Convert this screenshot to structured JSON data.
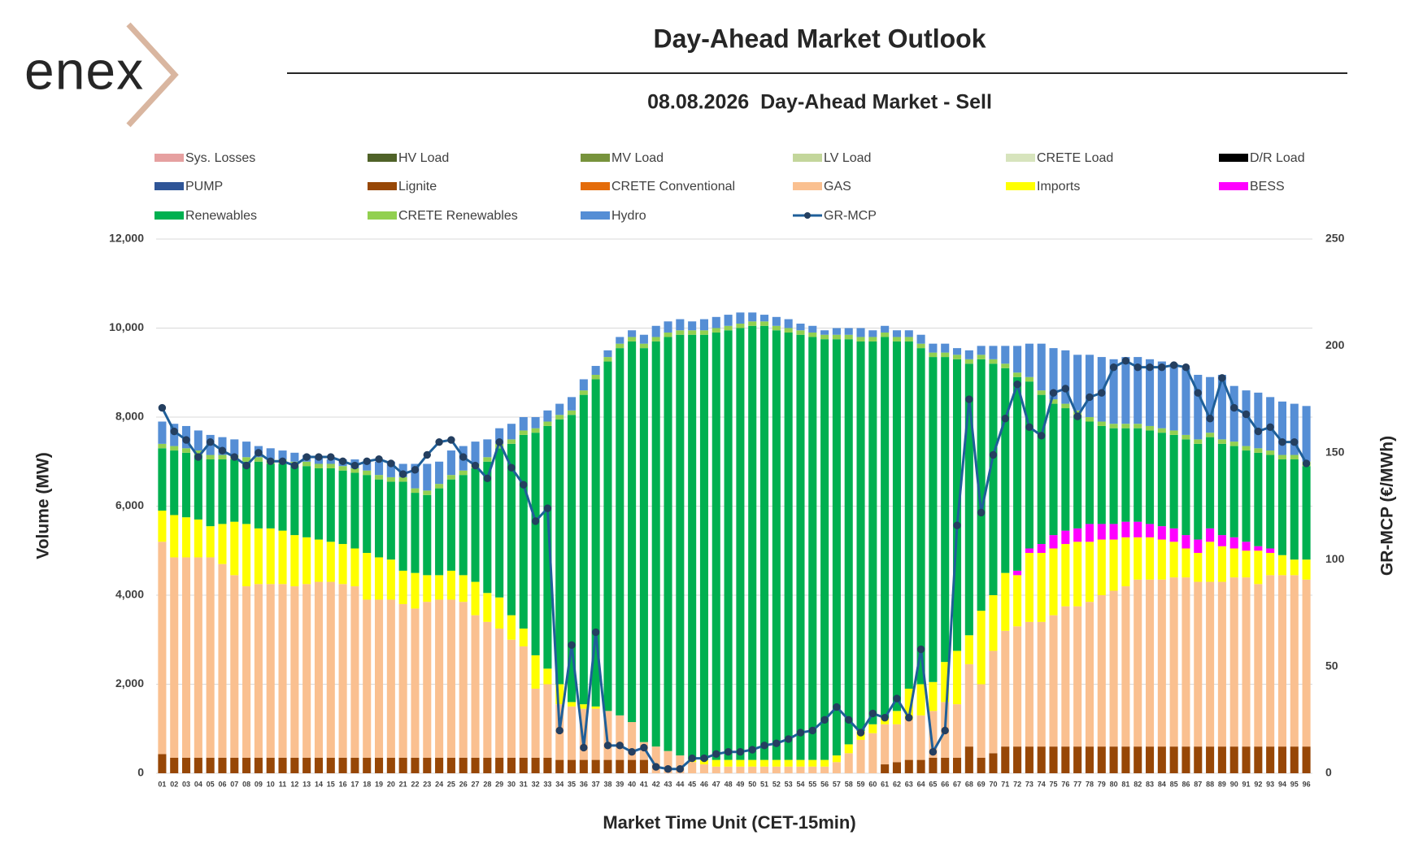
{
  "logo": "enex",
  "chart_data": {
    "type": "bar",
    "title": "Day-Ahead Market Outlook",
    "subtitle": "08.08.2026  Day-Ahead Market - Sell",
    "x_label": "Market Time Unit (CET-15min)",
    "y_label": "Volume (MW)",
    "y2_label": "GR-MCP (€/MWh)",
    "stacked": true,
    "grid": true,
    "legend": "top",
    "categories": [
      "01",
      "02",
      "03",
      "04",
      "05",
      "06",
      "07",
      "08",
      "09",
      "10",
      "11",
      "12",
      "13",
      "14",
      "15",
      "16",
      "17",
      "18",
      "19",
      "20",
      "21",
      "22",
      "23",
      "24",
      "25",
      "26",
      "27",
      "28",
      "29",
      "30",
      "31",
      "32",
      "33",
      "34",
      "35",
      "36",
      "37",
      "38",
      "39",
      "40",
      "41",
      "42",
      "43",
      "44",
      "45",
      "46",
      "47",
      "48",
      "49",
      "50",
      "51",
      "52",
      "53",
      "54",
      "55",
      "56",
      "57",
      "58",
      "59",
      "60",
      "61",
      "62",
      "63",
      "64",
      "65",
      "66",
      "67",
      "68",
      "69",
      "70",
      "71",
      "72",
      "73",
      "74",
      "75",
      "76",
      "77",
      "78",
      "79",
      "80",
      "81",
      "82",
      "83",
      "84",
      "85",
      "86",
      "87",
      "88",
      "89",
      "90",
      "91",
      "92",
      "93",
      "94",
      "95",
      "96"
    ],
    "ylim": [
      0,
      12000
    ],
    "yticks": [
      {
        "value": 0,
        "label": "0"
      },
      {
        "value": 2000,
        "label": "2,000"
      },
      {
        "value": 4000,
        "label": "4,000"
      },
      {
        "value": 6000,
        "label": "6,000"
      },
      {
        "value": 8000,
        "label": "8,000"
      },
      {
        "value": 10000,
        "label": "10,000"
      },
      {
        "value": 12000,
        "label": "12,000"
      }
    ],
    "y2lim": [
      0,
      250
    ],
    "y2ticks": [
      0,
      50,
      100,
      150,
      200,
      250
    ],
    "series": [
      {
        "name": "Sys. Losses",
        "color": "#e6a0a0"
      },
      {
        "name": "HV Load",
        "color": "#4f6228"
      },
      {
        "name": "MV Load",
        "color": "#77933c"
      },
      {
        "name": "LV Load",
        "color": "#c3d69b"
      },
      {
        "name": "CRETE Load",
        "color": "#d7e4bd"
      },
      {
        "name": "D/R Load",
        "color": "#000000"
      },
      {
        "name": "PUMP",
        "color": "#2f5597"
      },
      {
        "name": "Lignite",
        "color": "#974706",
        "values": [
          430,
          350,
          350,
          350,
          350,
          350,
          350,
          350,
          350,
          350,
          350,
          350,
          350,
          350,
          350,
          350,
          350,
          350,
          350,
          350,
          350,
          350,
          350,
          350,
          350,
          350,
          350,
          350,
          350,
          350,
          350,
          350,
          350,
          300,
          300,
          300,
          300,
          300,
          300,
          300,
          300,
          0,
          0,
          0,
          0,
          0,
          0,
          0,
          0,
          0,
          0,
          0,
          0,
          0,
          0,
          0,
          0,
          0,
          0,
          0,
          200,
          250,
          300,
          300,
          350,
          350,
          350,
          600,
          350,
          450,
          600,
          600,
          600,
          600,
          600,
          600,
          600,
          600,
          600,
          600,
          600,
          600,
          600,
          600,
          600,
          600,
          600,
          600,
          600,
          600,
          600,
          600,
          600,
          600,
          600,
          600
        ]
      },
      {
        "name": "CRETE Conventional",
        "color": "#e46c0a"
      },
      {
        "name": "GAS",
        "color": "#fac090",
        "values": [
          4770,
          4500,
          4500,
          4500,
          4500,
          4350,
          4100,
          3850,
          3900,
          3900,
          3900,
          3850,
          3900,
          3950,
          3950,
          3900,
          3850,
          3550,
          3550,
          3550,
          3450,
          3350,
          3500,
          3550,
          3550,
          3500,
          3200,
          3050,
          2900,
          2650,
          2500,
          1550,
          1650,
          1250,
          1200,
          1150,
          1150,
          1100,
          1000,
          850,
          400,
          600,
          500,
          400,
          250,
          200,
          150,
          150,
          150,
          150,
          150,
          150,
          150,
          150,
          150,
          150,
          250,
          450,
          750,
          900,
          900,
          850,
          900,
          1000,
          1050,
          1250,
          1200,
          1850,
          1650,
          2300,
          2600,
          2700,
          2800,
          2800,
          2950,
          3150,
          3150,
          3250,
          3400,
          3500,
          3600,
          3750,
          3750,
          3750,
          3800,
          3800,
          3700,
          3700,
          3700,
          3800,
          3800,
          3650,
          3850,
          3850,
          3850,
          3750
        ]
      },
      {
        "name": "Imports",
        "color": "#ffff00",
        "values": [
          700,
          950,
          900,
          850,
          700,
          900,
          1200,
          1400,
          1250,
          1250,
          1200,
          1150,
          1050,
          950,
          900,
          900,
          850,
          1050,
          950,
          900,
          750,
          800,
          600,
          550,
          650,
          600,
          750,
          650,
          700,
          550,
          400,
          750,
          350,
          450,
          100,
          100,
          50,
          0,
          0,
          0,
          0,
          0,
          0,
          0,
          50,
          100,
          150,
          150,
          150,
          150,
          150,
          150,
          150,
          150,
          150,
          150,
          150,
          200,
          200,
          200,
          150,
          300,
          700,
          700,
          650,
          900,
          1200,
          650,
          1650,
          1250,
          1300,
          1150,
          1550,
          1550,
          1500,
          1400,
          1450,
          1350,
          1250,
          1150,
          1100,
          950,
          950,
          900,
          800,
          650,
          650,
          900,
          800,
          650,
          600,
          750,
          500,
          450,
          350,
          450
        ]
      },
      {
        "name": "BESS",
        "color": "#ff00ff",
        "values": [
          0,
          0,
          0,
          0,
          0,
          0,
          0,
          0,
          0,
          0,
          0,
          0,
          0,
          0,
          0,
          0,
          0,
          0,
          0,
          0,
          0,
          0,
          0,
          0,
          0,
          0,
          0,
          0,
          0,
          0,
          0,
          0,
          0,
          0,
          0,
          0,
          0,
          0,
          0,
          0,
          0,
          0,
          0,
          0,
          0,
          0,
          0,
          0,
          0,
          0,
          0,
          0,
          0,
          0,
          0,
          0,
          0,
          0,
          0,
          0,
          0,
          0,
          0,
          0,
          0,
          0,
          0,
          0,
          0,
          0,
          0,
          100,
          100,
          200,
          300,
          300,
          300,
          400,
          350,
          350,
          350,
          350,
          300,
          300,
          300,
          300,
          300,
          300,
          250,
          250,
          200,
          100,
          100,
          0,
          0,
          0
        ]
      },
      {
        "name": "Renewables",
        "color": "#00b050",
        "values": [
          1400,
          1450,
          1450,
          1450,
          1500,
          1450,
          1400,
          1400,
          1500,
          1450,
          1500,
          1550,
          1600,
          1600,
          1650,
          1650,
          1700,
          1750,
          1750,
          1750,
          2000,
          1800,
          1800,
          1950,
          2050,
          2250,
          2550,
          2950,
          3350,
          3850,
          4350,
          5000,
          5450,
          5950,
          6450,
          6950,
          7350,
          7850,
          8250,
          8550,
          8850,
          9100,
          9300,
          9450,
          9550,
          9550,
          9600,
          9650,
          9700,
          9750,
          9750,
          9650,
          9600,
          9550,
          9500,
          9450,
          9350,
          9100,
          8750,
          8600,
          8550,
          8300,
          7800,
          7550,
          7300,
          6850,
          6550,
          6100,
          5650,
          5200,
          4600,
          4350,
          3750,
          3350,
          2950,
          2750,
          2550,
          2300,
          2200,
          2150,
          2100,
          2100,
          2100,
          2100,
          2100,
          2150,
          2150,
          2050,
          2050,
          2050,
          2050,
          2100,
          2100,
          2150,
          2250,
          2100
        ]
      },
      {
        "name": "CRETE Renewables",
        "color": "#92d050",
        "values": [
          100,
          100,
          100,
          100,
          100,
          100,
          100,
          100,
          100,
          100,
          100,
          100,
          100,
          100,
          100,
          100,
          100,
          100,
          100,
          100,
          100,
          100,
          100,
          100,
          100,
          100,
          100,
          100,
          100,
          100,
          100,
          100,
          100,
          100,
          100,
          100,
          100,
          100,
          100,
          100,
          100,
          100,
          100,
          100,
          100,
          100,
          100,
          100,
          100,
          100,
          100,
          100,
          100,
          100,
          100,
          100,
          100,
          100,
          100,
          100,
          100,
          100,
          100,
          100,
          100,
          100,
          100,
          100,
          100,
          100,
          100,
          100,
          100,
          100,
          100,
          100,
          100,
          100,
          100,
          100,
          100,
          100,
          100,
          100,
          100,
          100,
          100,
          100,
          100,
          100,
          100,
          100,
          100,
          100,
          100,
          100
        ]
      },
      {
        "name": "Hydro",
        "color": "#558ed5",
        "values": [
          500,
          500,
          500,
          450,
          450,
          400,
          350,
          350,
          250,
          250,
          200,
          200,
          150,
          150,
          100,
          150,
          200,
          200,
          300,
          350,
          300,
          550,
          600,
          500,
          550,
          550,
          500,
          400,
          350,
          350,
          300,
          250,
          250,
          250,
          300,
          250,
          200,
          150,
          150,
          150,
          200,
          250,
          250,
          250,
          200,
          250,
          250,
          250,
          250,
          200,
          150,
          200,
          200,
          150,
          150,
          100,
          150,
          150,
          200,
          150,
          150,
          150,
          150,
          200,
          200,
          200,
          150,
          200,
          200,
          300,
          400,
          600,
          750,
          1050,
          1150,
          1200,
          1250,
          1400,
          1450,
          1450,
          1500,
          1500,
          1500,
          1500,
          1500,
          1500,
          1450,
          1250,
          1450,
          1250,
          1250,
          1250,
          1200,
          1200,
          1150,
          1250
        ]
      },
      {
        "name": "GR-MCP",
        "color": "#1f5f99",
        "type": "line",
        "axis": "y2",
        "values": [
          171,
          160,
          156,
          148,
          155,
          151,
          148,
          144,
          150,
          146,
          146,
          144,
          148,
          148,
          148,
          146,
          144,
          146,
          147,
          145,
          140,
          142,
          149,
          155,
          156,
          148,
          144,
          138,
          155,
          143,
          135,
          118,
          124,
          20,
          60,
          12,
          66,
          13,
          13,
          10,
          12,
          3,
          2,
          2,
          7,
          7,
          9,
          10,
          10,
          11,
          13,
          14,
          16,
          19,
          20,
          25,
          31,
          25,
          19,
          28,
          26,
          35,
          26,
          58,
          10,
          20,
          116,
          175,
          122,
          149,
          166,
          182,
          162,
          158,
          178,
          180,
          167,
          176,
          178,
          190,
          193,
          190,
          190,
          190,
          191,
          190,
          178,
          166,
          185,
          171,
          168,
          160,
          162,
          155,
          155,
          145
        ]
      }
    ]
  }
}
